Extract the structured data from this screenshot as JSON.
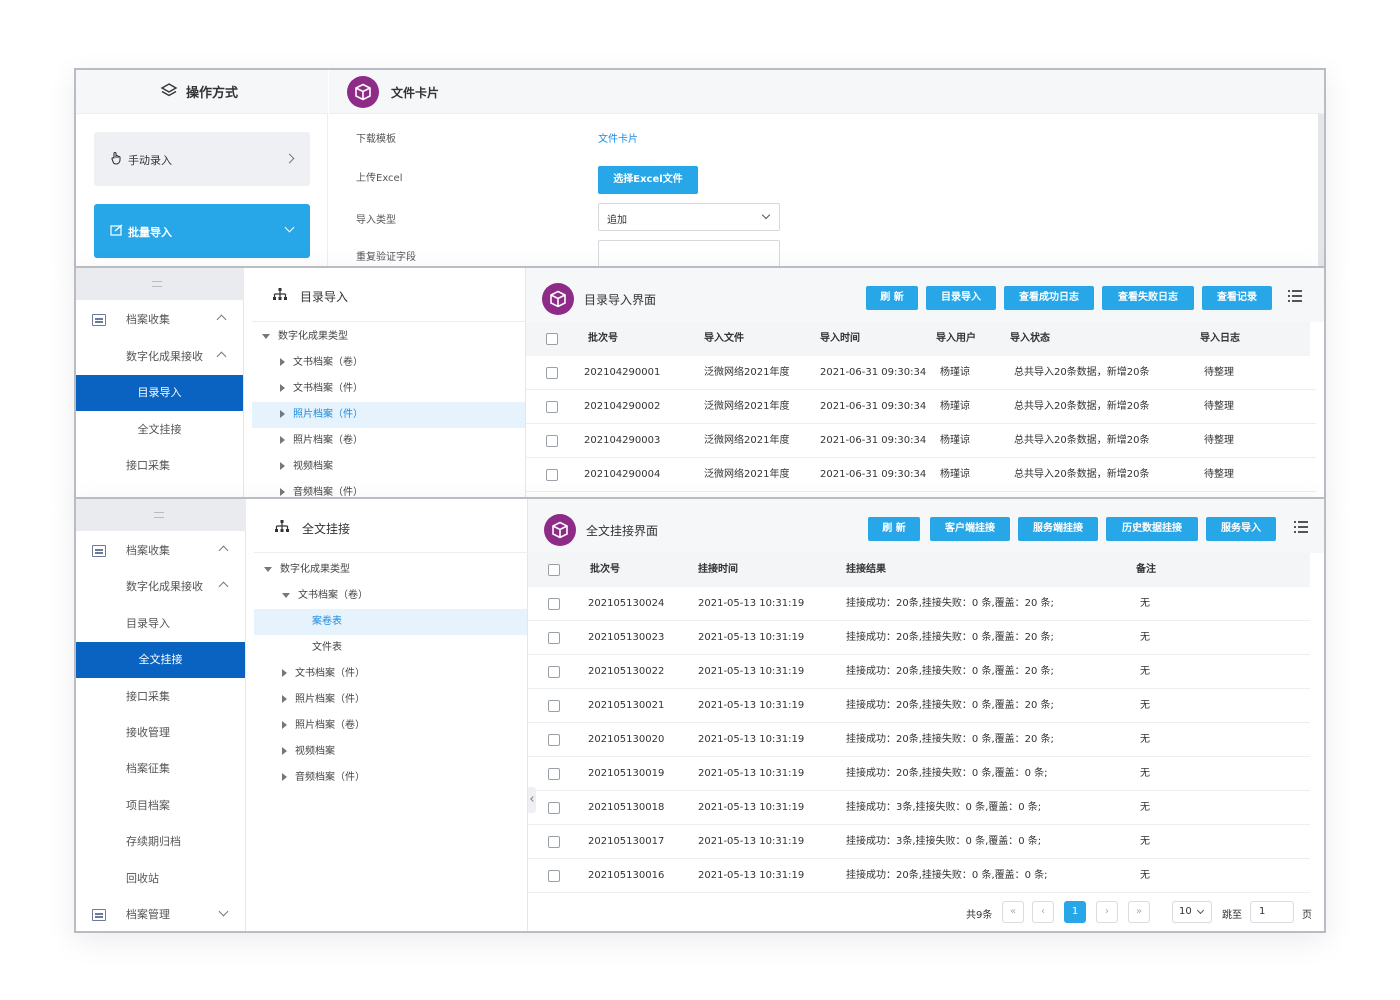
{
  "top": {
    "section_title": "操作方式",
    "card_title": "文件卡片",
    "methods": [
      {
        "label": "手动录入",
        "active": false
      },
      {
        "label": "批量导入",
        "active": true
      }
    ],
    "form": {
      "download_label": "下载模板",
      "download_link": "文件卡片",
      "upload_label": "上传Excel",
      "upload_button": "选择Excel文件",
      "type_label": "导入类型",
      "type_value": "追加",
      "dedupe_label": "重复验证字段",
      "dedupe_value": ""
    }
  },
  "middle": {
    "sidebar": [
      {
        "label": "档案收集",
        "type": "group"
      },
      {
        "label": "数字化成果接收",
        "type": "sub"
      },
      {
        "label": "目录导入",
        "type": "active"
      },
      {
        "label": "全文挂接",
        "type": "leaf"
      },
      {
        "label": "接口采集",
        "type": "leaf"
      }
    ],
    "tree_title": "目录导入",
    "tree": [
      {
        "label": "数字化成果类型",
        "level": 0,
        "open": true
      },
      {
        "label": "文书档案（卷）",
        "level": 1
      },
      {
        "label": "文书档案（件）",
        "level": 1
      },
      {
        "label": "照片档案（件）",
        "level": 1,
        "selected": true
      },
      {
        "label": "照片档案（卷）",
        "level": 1
      },
      {
        "label": "视频档案",
        "level": 1
      },
      {
        "label": "音频档案（件）",
        "level": 1
      }
    ],
    "panel_title": "目录导入界面",
    "buttons": [
      "刷 新",
      "目录导入",
      "查看成功日志",
      "查看失败日志",
      "查看记录"
    ],
    "columns": [
      "批次号",
      "导入文件",
      "导入时间",
      "导入用户",
      "导入状态",
      "导入日志"
    ],
    "rows": [
      [
        "202104290001",
        "泛微网络2021年度",
        "2021-06-31 09:30:34",
        "杨瑾谅",
        "总共导入20条数据，新增20条",
        "待整理"
      ],
      [
        "202104290002",
        "泛微网络2021年度",
        "2021-06-31 09:30:34",
        "杨瑾谅",
        "总共导入20条数据，新增20条",
        "待整理"
      ],
      [
        "202104290003",
        "泛微网络2021年度",
        "2021-06-31 09:30:34",
        "杨瑾谅",
        "总共导入20条数据，新增20条",
        "待整理"
      ],
      [
        "202104290004",
        "泛微网络2021年度",
        "2021-06-31 09:30:34",
        "杨瑾谅",
        "总共导入20条数据，新增20条",
        "待整理"
      ]
    ]
  },
  "bottom": {
    "sidebar": [
      {
        "label": "档案收集",
        "type": "group"
      },
      {
        "label": "数字化成果接收",
        "type": "sub"
      },
      {
        "label": "目录导入",
        "type": "leaf"
      },
      {
        "label": "全文挂接",
        "type": "active"
      },
      {
        "label": "接口采集",
        "type": "leaf"
      },
      {
        "label": "接收管理",
        "type": "leaf"
      },
      {
        "label": "档案征集",
        "type": "leaf"
      },
      {
        "label": "项目档案",
        "type": "leaf"
      },
      {
        "label": "存续期归档",
        "type": "leaf"
      },
      {
        "label": "回收站",
        "type": "leaf"
      },
      {
        "label": "档案管理",
        "type": "group2"
      }
    ],
    "tree_title": "全文挂接",
    "tree": [
      {
        "label": "数字化成果类型",
        "level": 0,
        "open": true
      },
      {
        "label": "文书档案（卷）",
        "level": 1,
        "open": true
      },
      {
        "label": "案卷表",
        "level": 2,
        "selected": true
      },
      {
        "label": "文件表",
        "level": 2
      },
      {
        "label": "文书档案（件）",
        "level": 1
      },
      {
        "label": "照片档案（件）",
        "level": 1
      },
      {
        "label": "照片档案（卷）",
        "level": 1
      },
      {
        "label": "视频档案",
        "level": 1
      },
      {
        "label": "音频档案（件）",
        "level": 1
      }
    ],
    "panel_title": "全文挂接界面",
    "buttons": [
      "刷 新",
      "客户端挂接",
      "服务端挂接",
      "历史数据挂接",
      "服务导入"
    ],
    "columns": [
      "批次号",
      "挂接时间",
      "挂接结果",
      "备注"
    ],
    "rows": [
      [
        "202105130024",
        "2021-05-13 10:31:19",
        "挂接成功：20条,挂接失败：0 条,覆盖：20 条;",
        "无"
      ],
      [
        "202105130023",
        "2021-05-13 10:31:19",
        "挂接成功：20条,挂接失败：0 条,覆盖：20 条;",
        "无"
      ],
      [
        "202105130022",
        "2021-05-13 10:31:19",
        "挂接成功：20条,挂接失败：0 条,覆盖：20 条;",
        "无"
      ],
      [
        "202105130021",
        "2021-05-13 10:31:19",
        "挂接成功：20条,挂接失败：0 条,覆盖：20 条;",
        "无"
      ],
      [
        "202105130020",
        "2021-05-13 10:31:19",
        "挂接成功：20条,挂接失败：0 条,覆盖：20 条;",
        "无"
      ],
      [
        "202105130019",
        "2021-05-13 10:31:19",
        "挂接成功：20条,挂接失败：0 条,覆盖：0 条;",
        "无"
      ],
      [
        "202105130018",
        "2021-05-13 10:31:19",
        "挂接成功：3条,挂接失败：0 条,覆盖：0 条;",
        "无"
      ],
      [
        "202105130017",
        "2021-05-13 10:31:19",
        "挂接成功：3条,挂接失败：0 条,覆盖：0 条;",
        "无"
      ],
      [
        "202105130016",
        "2021-05-13 10:31:19",
        "挂接成功：20条,挂接失败：0 条,覆盖：0 条;",
        "无"
      ]
    ],
    "pagination": {
      "total": "共9条",
      "current_page": "1",
      "page_size": "10",
      "goto_label": "跳至",
      "goto_value": "1",
      "page_unit": "页"
    }
  },
  "colors": {
    "accent": "#27a6e8",
    "nav_active": "#0a63c0",
    "logo": "#8e2a87"
  }
}
